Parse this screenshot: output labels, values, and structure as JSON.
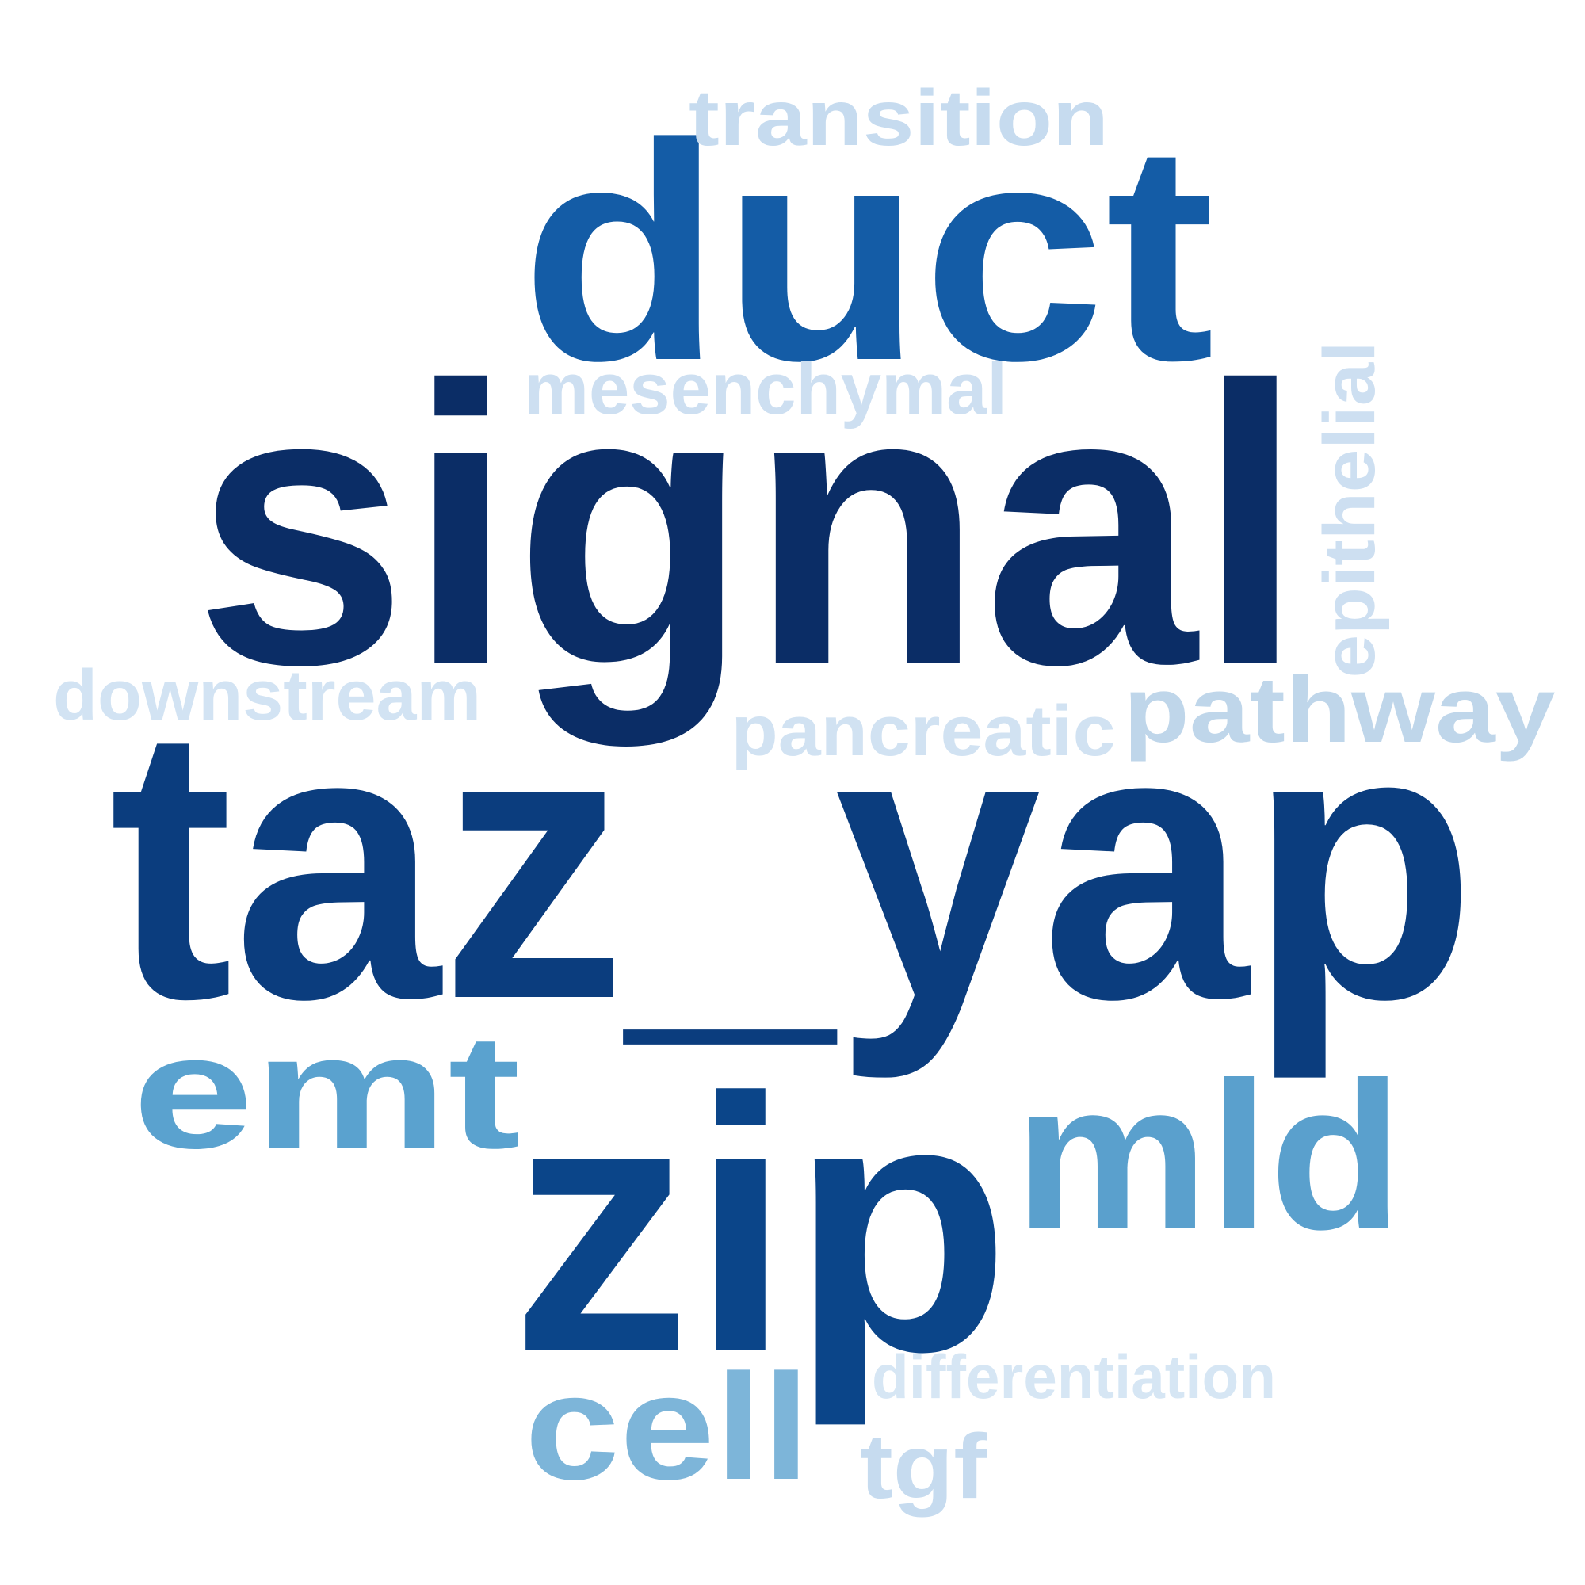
{
  "words": [
    {
      "text": "signal",
      "weight": 1.0,
      "color": "#0b2d66",
      "orientation": "horizontal"
    },
    {
      "text": "taz_yap",
      "weight": 0.95,
      "color": "#0b3d7e",
      "orientation": "horizontal"
    },
    {
      "text": "zip",
      "weight": 0.85,
      "color": "#0b4589",
      "orientation": "horizontal"
    },
    {
      "text": "duct",
      "weight": 0.75,
      "color": "#145ca6",
      "orientation": "horizontal"
    },
    {
      "text": "mld",
      "weight": 0.45,
      "color": "#5aa0cd",
      "orientation": "horizontal"
    },
    {
      "text": "emt",
      "weight": 0.4,
      "color": "#5aa2cf",
      "orientation": "horizontal"
    },
    {
      "text": "cell",
      "weight": 0.38,
      "color": "#7db5d9",
      "orientation": "horizontal"
    },
    {
      "text": "pathway",
      "weight": 0.22,
      "color": "#bfd6ea",
      "orientation": "horizontal"
    },
    {
      "text": "tgf",
      "weight": 0.2,
      "color": "#c6dbef",
      "orientation": "horizontal"
    },
    {
      "text": "transition",
      "weight": 0.18,
      "color": "#c6dbef",
      "orientation": "horizontal"
    },
    {
      "text": "mesenchymal",
      "weight": 0.17,
      "color": "#cddff1",
      "orientation": "horizontal"
    },
    {
      "text": "epithelial",
      "weight": 0.17,
      "color": "#cddff1",
      "orientation": "vertical"
    },
    {
      "text": "pancreatic",
      "weight": 0.16,
      "color": "#d1e2f2",
      "orientation": "horizontal"
    },
    {
      "text": "downstream",
      "weight": 0.16,
      "color": "#d2e3f3",
      "orientation": "horizontal"
    },
    {
      "text": "differentiation",
      "weight": 0.15,
      "color": "#d6e6f4",
      "orientation": "horizontal"
    }
  ]
}
